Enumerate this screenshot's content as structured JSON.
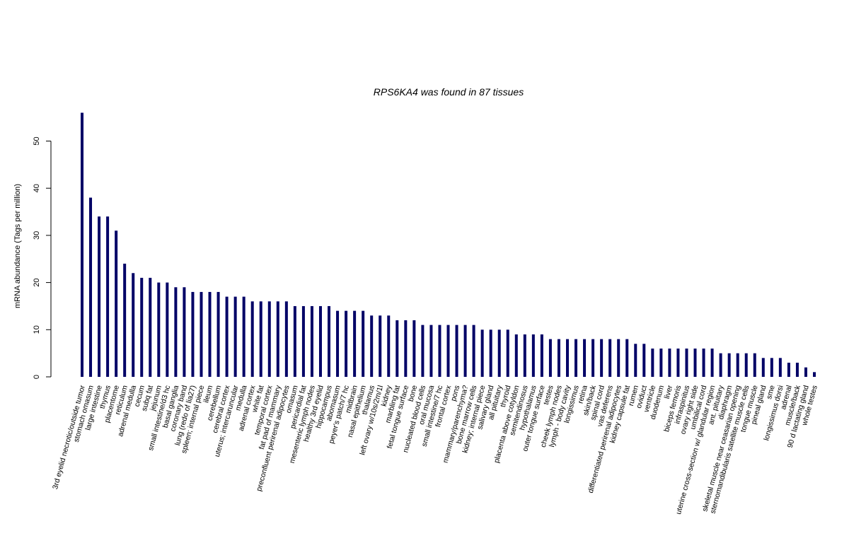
{
  "chart_data": {
    "type": "bar",
    "title": "RPS6KA4  was found in  87  tissues",
    "title_italic": true,
    "xlabel": "",
    "ylabel": "mRNA abundance (Tags per million)",
    "ylim": [
      0,
      56
    ],
    "yticks": [
      0,
      10,
      20,
      30,
      40,
      50
    ],
    "grid": false,
    "bar_color": "#000066",
    "categories": [
      "3rd eyelid necrotic/outside tumor",
      "stomach omasum",
      "large intestine",
      "thymus",
      "placentome",
      "reticulum",
      "adrenal medulla",
      "cecum",
      "subq fat",
      "jejunum",
      "small intestine/d3 hc",
      "basal ganglia",
      "coronary band",
      "lung (redo of lia27)",
      "spleen; internal piece",
      "ileum",
      "cerebellum",
      "cerebral cortex",
      "uterus; intercaruncular",
      "medulla",
      "adrenal cortex",
      "white fat",
      "temporal cortex",
      "fat pad of mammary",
      "preconfluent perirenal adipocytes",
      "omasum",
      "pericardial fat",
      "mesenteric lymph nodes",
      "healthy 3rd eyelid",
      "hippocampus",
      "abomasum",
      "peyer's patch/7 hc",
      "midbrain",
      "nasal epithelium",
      "thalamus",
      "left ovary w/10s/2m/1l",
      "kidney",
      "marbling fat",
      "fetal tongue surface",
      "bone",
      "nucleated blood cells",
      "oral mucosa",
      "small intestine/7 hc",
      "frontal cortex",
      "pons",
      "mammary/parenchyma?",
      "bone marrow cells",
      "kidney; internal piece",
      "salivary gland",
      "all pituitary",
      "thyroid",
      "placenta above cotyldon",
      "semitendinosus",
      "hypothalamus",
      "outer tongue surface",
      "testes",
      "cheek lymph nodes",
      "lymph - body cavity",
      "longissimus",
      "retina",
      "skin/back",
      "spinal cord",
      "vas deferens",
      "differentiated perirenal adipocytes",
      "kidney capsule fat",
      "rumen",
      "oviduct",
      "ventricle",
      "duodenum",
      "liver",
      "biceps femoris",
      "infraspinitus",
      "ovary right side",
      "umbilical cord",
      "uterine cross-section w/ glandular region",
      "ant. pituitary",
      "diaphragm",
      "skeletal muscle near ceasarian opening",
      "sternomandibularis satellite muscle cells",
      "tongue muscle",
      "pineal gland",
      "sme",
      "longissimus dorsi",
      "adrenal",
      "muscle/back",
      "90 d lactating gland",
      "whole testes"
    ],
    "values": [
      56,
      38,
      34,
      34,
      31,
      24,
      22,
      21,
      21,
      20,
      20,
      19,
      19,
      18,
      18,
      18,
      18,
      17,
      17,
      17,
      16,
      16,
      16,
      16,
      16,
      15,
      15,
      15,
      15,
      15,
      14,
      14,
      14,
      14,
      13,
      13,
      13,
      12,
      12,
      12,
      11,
      11,
      11,
      11,
      11,
      11,
      11,
      10,
      10,
      10,
      10,
      9,
      9,
      9,
      9,
      8,
      8,
      8,
      8,
      8,
      8,
      8,
      8,
      8,
      8,
      7,
      7,
      6,
      6,
      6,
      6,
      6,
      6,
      6,
      6,
      5,
      5,
      5,
      5,
      5,
      4,
      4,
      4,
      3,
      3,
      2,
      1
    ]
  }
}
